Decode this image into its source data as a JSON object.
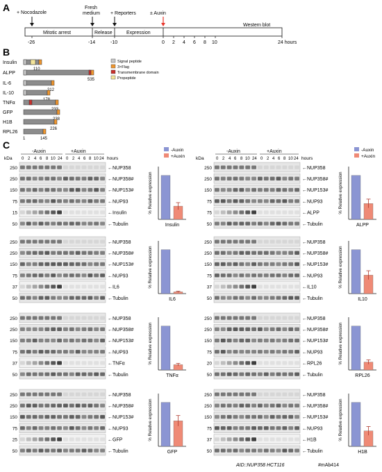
{
  "panel_a": {
    "letter": "A",
    "events": [
      {
        "label": "+ Nocodazole"
      },
      {
        "label": "Fresh"
      },
      {
        "label": "medium"
      },
      {
        "label": "+ Reporters"
      },
      {
        "label": "± Auxin"
      }
    ],
    "phases": [
      "Mitotic arrest",
      "Release",
      "Expression",
      "Western blot"
    ],
    "tick_labels": [
      "-26",
      "-14",
      "-10",
      "0",
      "2",
      "4",
      "6",
      "8",
      "10",
      "24 hours"
    ],
    "colors": {
      "auxin_arrow": "#e8352b"
    }
  },
  "panel_b": {
    "letter": "B",
    "constructs": [
      {
        "name": "Insulin",
        "length_label": "110"
      },
      {
        "name": "ALPP",
        "length_label": "535"
      },
      {
        "name": "IL-6",
        "length_label": "212"
      },
      {
        "name": "IL-10",
        "length_label": "178"
      },
      {
        "name": "TNFα",
        "length_label": "233"
      },
      {
        "name": "GFP",
        "length_label": "238"
      },
      {
        "name": "H1B",
        "length_label": "226"
      },
      {
        "name": "RPL26",
        "length_label": "145",
        "start_label": "1"
      }
    ],
    "legend": [
      {
        "label": "Signal peptide",
        "color": "#c8c8c8"
      },
      {
        "label": "3×Flag",
        "color": "#f0962e"
      },
      {
        "label": "Transmembrane domain",
        "color": "#c9302c"
      },
      {
        "label": "Propeptide",
        "color": "#f3e49a"
      }
    ],
    "body_color": "#8c8c8c"
  },
  "panel_c": {
    "letter": "C",
    "kda_label": "kDa",
    "header": {
      "minus_auxin": "-Auxin",
      "plus_auxin": "+Auxin",
      "hours_label": "hours",
      "lanes": [
        "0",
        "2",
        "4",
        "6",
        "8",
        "10",
        "24",
        "0",
        "2",
        "4",
        "6",
        "8",
        "10",
        "24"
      ]
    },
    "bar_legend": [
      {
        "label": "-Auxin",
        "color": "#8b95d3"
      },
      {
        "label": "+Auxin",
        "color": "#ef8a76"
      }
    ],
    "ylabel": "% Relative expression",
    "left_blocks": [
      {
        "reporter": "Insulin",
        "rows": [
          {
            "kda": "250",
            "label": "NUP358"
          },
          {
            "kda": "250",
            "label": "NUP358#"
          },
          {
            "kda": "150",
            "label": "NUP153#"
          },
          {
            "kda": "75",
            "label": "NUP93"
          },
          {
            "kda": "15",
            "label": "Insulin"
          },
          {
            "kda": "50",
            "label": "Tubulin"
          }
        ]
      },
      {
        "reporter": "IL6",
        "rows": [
          {
            "kda": "250",
            "label": "NUP358"
          },
          {
            "kda": "250",
            "label": "NUP358#"
          },
          {
            "kda": "150",
            "label": "NUP153#"
          },
          {
            "kda": "75",
            "label": "NUP93"
          },
          {
            "kda": "37",
            "label": "IL6"
          },
          {
            "kda": "50",
            "label": "Tubulin"
          }
        ]
      },
      {
        "reporter": "TNFα",
        "rows": [
          {
            "kda": "250",
            "label": "NUP358"
          },
          {
            "kda": "250",
            "label": "NUP358#"
          },
          {
            "kda": "150",
            "label": "NUP153#"
          },
          {
            "kda": "75",
            "label": "NUP93"
          },
          {
            "kda": "37",
            "label": "TNFα"
          },
          {
            "kda": "50",
            "label": "Tubulin"
          }
        ]
      },
      {
        "reporter": "GFP",
        "rows": [
          {
            "kda": "250",
            "label": "NUP358"
          },
          {
            "kda": "250",
            "label": "NUP358#"
          },
          {
            "kda": "150",
            "label": "NUP153#"
          },
          {
            "kda": "75",
            "label": "NUP93"
          },
          {
            "kda": "25",
            "label": "GFP"
          },
          {
            "kda": "50",
            "label": "Tubulin"
          }
        ]
      }
    ],
    "right_blocks": [
      {
        "reporter": "ALPP",
        "rows": [
          {
            "kda": "250",
            "label": "NUP358"
          },
          {
            "kda": "250",
            "label": "NUP358#"
          },
          {
            "kda": "150",
            "label": "NUP153#"
          },
          {
            "kda": "75",
            "label": "NUP93"
          },
          {
            "kda": "75",
            "label": "ALPP"
          },
          {
            "kda": "50",
            "label": "Tubulin"
          }
        ]
      },
      {
        "reporter": "IL10",
        "rows": [
          {
            "kda": "250",
            "label": "NUP358"
          },
          {
            "kda": "250",
            "label": "NUP358#"
          },
          {
            "kda": "150",
            "label": "NUP153#"
          },
          {
            "kda": "75",
            "label": "NUP93"
          },
          {
            "kda": "37",
            "label": "IL10"
          },
          {
            "kda": "50",
            "label": "Tubulin"
          }
        ]
      },
      {
        "reporter": "RPL26",
        "rows": [
          {
            "kda": "250",
            "label": "NUP358"
          },
          {
            "kda": "250",
            "label": "NUP358#"
          },
          {
            "kda": "150",
            "label": "NUP153#"
          },
          {
            "kda": "75",
            "label": "NUP93"
          },
          {
            "kda": "20",
            "label": "RPL26"
          },
          {
            "kda": "50",
            "label": "Tubulin"
          }
        ]
      },
      {
        "reporter": "H1B",
        "rows": [
          {
            "kda": "250",
            "label": "NUP358"
          },
          {
            "kda": "250",
            "label": "NUP358#"
          },
          {
            "kda": "150",
            "label": "NUP153#"
          },
          {
            "kda": "75",
            "label": "NUP93"
          },
          {
            "kda": "37",
            "label": "H1B"
          },
          {
            "kda": "50",
            "label": "Tubulin"
          }
        ]
      }
    ],
    "footer": {
      "cell_line": "AID::NUP358 HCT116",
      "antibody_note": "#mAb414"
    }
  },
  "chart_data": [
    {
      "type": "bar",
      "categories": [
        "-Auxin",
        "+Auxin"
      ],
      "xlabel": "Insulin",
      "ylabel": "% Relative expression",
      "ylim": [
        0,
        120
      ],
      "values": [
        100,
        30
      ],
      "errors": [
        0,
        8
      ]
    },
    {
      "type": "bar",
      "categories": [
        "-Auxin",
        "+Auxin"
      ],
      "xlabel": "ALPP",
      "ylabel": "% Relative expression",
      "ylim": [
        0,
        120
      ],
      "values": [
        100,
        36
      ],
      "errors": [
        0,
        10
      ]
    },
    {
      "type": "bar",
      "categories": [
        "-Auxin",
        "+Auxin"
      ],
      "xlabel": "IL6",
      "ylabel": "% Relative expression",
      "ylim": [
        0,
        120
      ],
      "values": [
        100,
        4
      ],
      "errors": [
        0,
        1.5
      ]
    },
    {
      "type": "bar",
      "categories": [
        "-Auxin",
        "+Auxin"
      ],
      "xlabel": "IL10",
      "ylabel": "% Relative expression",
      "ylim": [
        0,
        120
      ],
      "values": [
        100,
        42
      ],
      "errors": [
        0,
        10
      ]
    },
    {
      "type": "bar",
      "categories": [
        "-Auxin",
        "+Auxin"
      ],
      "xlabel": "TNFα",
      "ylabel": "% Relative expression",
      "ylim": [
        0,
        120
      ],
      "values": [
        100,
        12
      ],
      "errors": [
        0,
        3
      ]
    },
    {
      "type": "bar",
      "categories": [
        "-Auxin",
        "+Auxin"
      ],
      "xlabel": "RPL26",
      "ylabel": "% Relative expression",
      "ylim": [
        0,
        120
      ],
      "values": [
        100,
        18
      ],
      "errors": [
        0,
        5
      ]
    },
    {
      "type": "bar",
      "categories": [
        "-Auxin",
        "+Auxin"
      ],
      "xlabel": "GFP",
      "ylabel": "% Relative expression",
      "ylim": [
        0,
        120
      ],
      "values": [
        100,
        58
      ],
      "errors": [
        0,
        12
      ]
    },
    {
      "type": "bar",
      "categories": [
        "-Auxin",
        "+Auxin"
      ],
      "xlabel": "H1B",
      "ylabel": "% Relative expression",
      "ylim": [
        0,
        120
      ],
      "values": [
        100,
        35
      ],
      "errors": [
        0,
        10
      ]
    }
  ]
}
